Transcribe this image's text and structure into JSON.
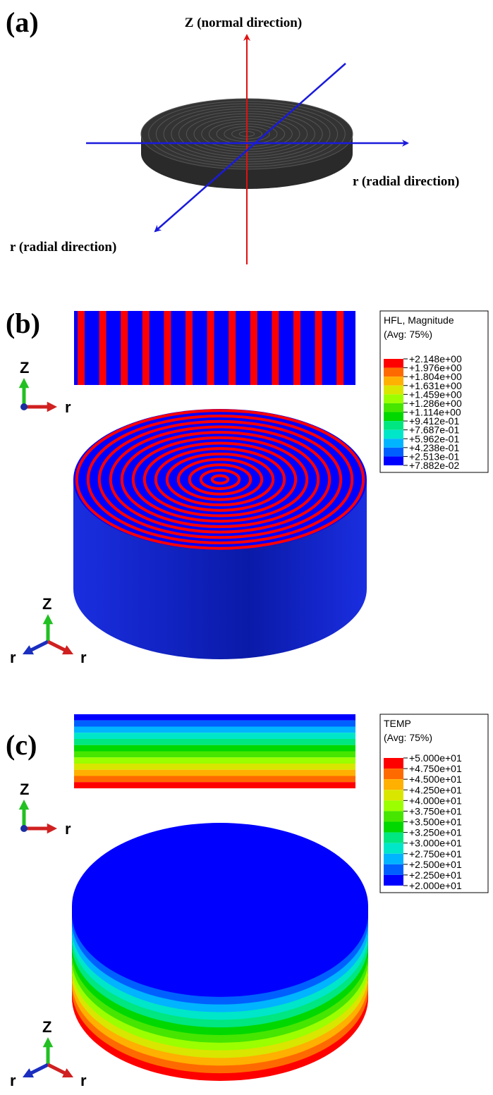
{
  "panel_a": {
    "label": "(a)",
    "z_label": "Z (normal direction)",
    "r_label_right": "r (radial direction)",
    "r_label_left": "r (radial direction)"
  },
  "panel_b": {
    "label": "(b)",
    "legend": {
      "title": "HFL, Magnitude",
      "subtitle": "(Avg: 75%)",
      "values": [
        "+2.148e+00",
        "+1.976e+00",
        "+1.804e+00",
        "+1.631e+00",
        "+1.459e+00",
        "+1.286e+00",
        "+1.114e+00",
        "+9.412e-01",
        "+7.687e-01",
        "+5.962e-01",
        "+4.238e-01",
        "+2.513e-01",
        "+7.882e-02"
      ]
    },
    "triad_side": [
      "Z",
      "r"
    ],
    "triad_iso": [
      "Z",
      "r",
      "r"
    ]
  },
  "panel_c": {
    "label": "(c)",
    "legend": {
      "title": "TEMP",
      "subtitle": "(Avg: 75%)",
      "values": [
        "+5.000e+01",
        "+4.750e+01",
        "+4.500e+01",
        "+4.250e+01",
        "+4.000e+01",
        "+3.750e+01",
        "+3.500e+01",
        "+3.250e+01",
        "+3.000e+01",
        "+2.750e+01",
        "+2.500e+01",
        "+2.250e+01",
        "+2.000e+01"
      ]
    },
    "triad_side": [
      "Z",
      "r"
    ],
    "triad_iso": [
      "Z",
      "r",
      "r"
    ]
  }
}
